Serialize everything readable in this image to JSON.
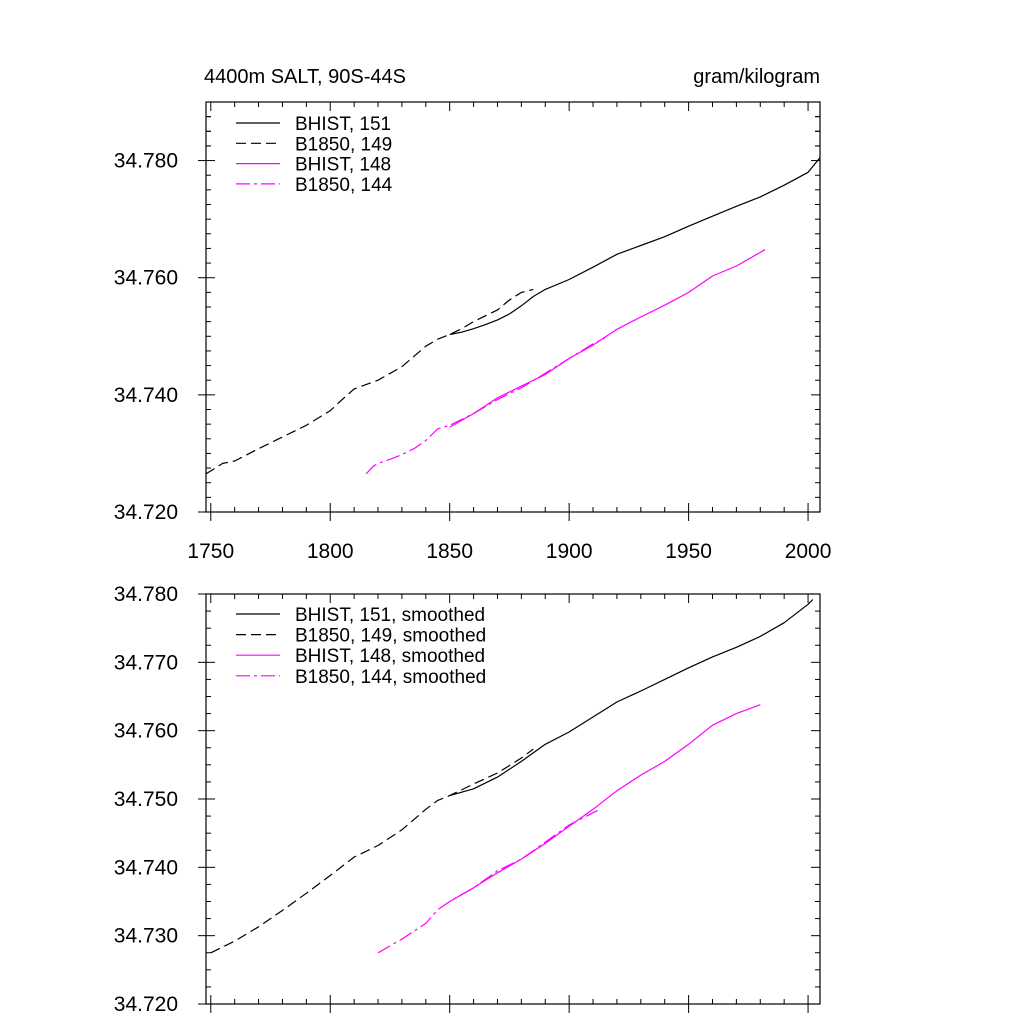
{
  "chart_data": [
    {
      "type": "line",
      "title": "4400m SALT, 90S-44S",
      "units": "gram/kilogram",
      "xlim": [
        1748,
        2005
      ],
      "ylim": [
        34.72,
        34.79
      ],
      "xticks": [
        1750,
        1800,
        1850,
        1900,
        1950,
        2000
      ],
      "xtick_labels": [
        "1750",
        "1800",
        "1850",
        "1900",
        "1950",
        "2000"
      ],
      "yticks": [
        34.72,
        34.74,
        34.76,
        34.78
      ],
      "ytick_labels": [
        "34.720",
        "34.740",
        "34.760",
        "34.780"
      ],
      "legend_position": "top-left",
      "series": [
        {
          "name": "BHIST, 151",
          "color": "#000000",
          "dash": "solid",
          "x": [
            1850,
            1855,
            1860,
            1865,
            1870,
            1875,
            1880,
            1885,
            1890,
            1900,
            1910,
            1920,
            1930,
            1940,
            1950,
            1960,
            1970,
            1980,
            1990,
            2000,
            2005
          ],
          "y": [
            34.7503,
            34.7507,
            34.7513,
            34.752,
            34.7528,
            34.7538,
            34.7552,
            34.7568,
            34.758,
            34.7597,
            34.7618,
            34.764,
            34.7655,
            34.767,
            34.7688,
            34.7705,
            34.7722,
            34.7738,
            34.7758,
            34.778,
            34.7805
          ]
        },
        {
          "name": "B1850, 149",
          "color": "#000000",
          "dash": "long",
          "x": [
            1748,
            1755,
            1760,
            1770,
            1780,
            1790,
            1800,
            1805,
            1810,
            1820,
            1830,
            1840,
            1845,
            1850,
            1855,
            1860,
            1865,
            1870,
            1875,
            1880,
            1885
          ],
          "y": [
            34.7265,
            34.7283,
            34.7287,
            34.7308,
            34.7328,
            34.7348,
            34.7373,
            34.7392,
            34.741,
            34.7425,
            34.7448,
            34.7483,
            34.7495,
            34.7503,
            34.7513,
            34.7525,
            34.7535,
            34.7545,
            34.7562,
            34.7575,
            34.758
          ]
        },
        {
          "name": "BHIST, 148",
          "color": "#ff00ff",
          "dash": "solid",
          "x": [
            1850,
            1860,
            1870,
            1880,
            1890,
            1900,
            1910,
            1920,
            1930,
            1940,
            1950,
            1960,
            1970,
            1982
          ],
          "y": [
            34.7345,
            34.7368,
            34.7395,
            34.7415,
            34.7435,
            34.7462,
            34.7485,
            34.7512,
            34.7533,
            34.7553,
            34.7575,
            34.7603,
            34.762,
            34.7648
          ]
        },
        {
          "name": "B1850, 144",
          "color": "#ff00ff",
          "dash": "dashdot",
          "x": [
            1815,
            1818,
            1820,
            1825,
            1830,
            1835,
            1840,
            1845,
            1850,
            1860,
            1870,
            1880,
            1890,
            1900,
            1910,
            1915
          ],
          "y": [
            34.7265,
            34.7278,
            34.7283,
            34.729,
            34.7298,
            34.7308,
            34.7322,
            34.7342,
            34.7348,
            34.7368,
            34.7392,
            34.7412,
            34.7437,
            34.7462,
            34.7487,
            34.7497
          ]
        }
      ]
    },
    {
      "type": "line",
      "xlim": [
        1748,
        2005
      ],
      "ylim": [
        34.72,
        34.78
      ],
      "xticks": [
        1750,
        1800,
        1850,
        1900,
        1950,
        2000
      ],
      "yticks": [
        34.72,
        34.73,
        34.74,
        34.75,
        34.76,
        34.77,
        34.78
      ],
      "ytick_labels": [
        "34.720",
        "34.730",
        "34.740",
        "34.750",
        "34.760",
        "34.770",
        "34.780"
      ],
      "legend_position": "top-left",
      "series": [
        {
          "name": "BHIST, 151, smoothed",
          "color": "#000000",
          "dash": "solid",
          "x": [
            1850,
            1860,
            1870,
            1880,
            1890,
            1900,
            1910,
            1920,
            1930,
            1940,
            1950,
            1960,
            1970,
            1980,
            1990,
            2000,
            2002
          ],
          "y": [
            34.7505,
            34.7515,
            34.7532,
            34.7555,
            34.758,
            34.7598,
            34.762,
            34.7642,
            34.7658,
            34.7675,
            34.7692,
            34.7708,
            34.7722,
            34.7738,
            34.7758,
            34.7785,
            34.7792
          ]
        },
        {
          "name": "B1850, 149, smoothed",
          "color": "#000000",
          "dash": "long",
          "x": [
            1750,
            1760,
            1770,
            1780,
            1790,
            1800,
            1810,
            1820,
            1830,
            1840,
            1845,
            1850,
            1860,
            1870,
            1880,
            1885
          ],
          "y": [
            34.7275,
            34.7292,
            34.7313,
            34.7337,
            34.7362,
            34.7388,
            34.7415,
            34.7432,
            34.7455,
            34.7485,
            34.7498,
            34.7505,
            34.7522,
            34.7538,
            34.756,
            34.7573
          ]
        },
        {
          "name": "BHIST, 148, smoothed",
          "color": "#ff00ff",
          "dash": "solid",
          "x": [
            1850,
            1860,
            1870,
            1880,
            1890,
            1900,
            1910,
            1920,
            1930,
            1940,
            1950,
            1960,
            1970,
            1980
          ],
          "y": [
            34.735,
            34.737,
            34.7392,
            34.7412,
            34.7435,
            34.746,
            34.7485,
            34.7512,
            34.7535,
            34.7555,
            34.758,
            34.7608,
            34.7625,
            34.7638
          ]
        },
        {
          "name": "B1850, 144, smoothed",
          "color": "#ff00ff",
          "dash": "dashdot",
          "x": [
            1820,
            1830,
            1840,
            1845,
            1850,
            1860,
            1870,
            1880,
            1890,
            1900,
            1910,
            1912
          ],
          "y": [
            34.7275,
            34.7295,
            34.7318,
            34.7338,
            34.735,
            34.737,
            34.7395,
            34.7412,
            34.7437,
            34.7462,
            34.748,
            34.7483
          ]
        }
      ]
    }
  ]
}
